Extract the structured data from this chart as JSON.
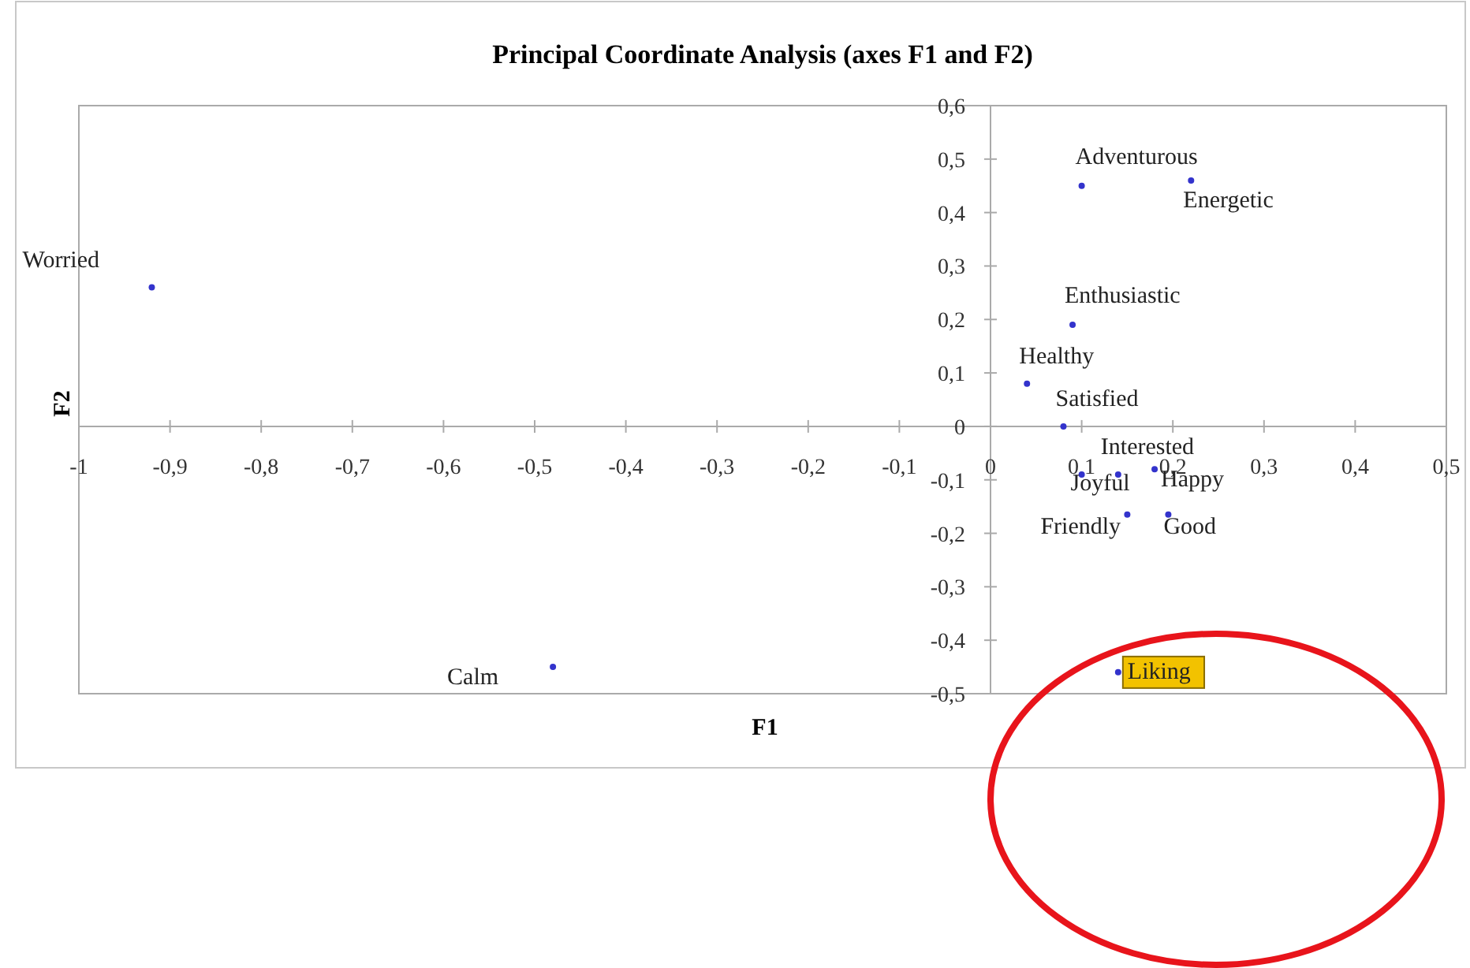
{
  "chart_data": {
    "type": "scatter",
    "title": "Principal Coordinate Analysis (axes F1 and F2)",
    "xlabel": "F1",
    "ylabel": "F2",
    "marker": "circle",
    "grid": false,
    "xlim": [
      -1,
      0.5
    ],
    "ylim": [
      -0.5,
      0.6
    ],
    "xticks": [
      {
        "value": -1,
        "label": "-1"
      },
      {
        "value": -0.9,
        "label": "-0,9"
      },
      {
        "value": -0.8,
        "label": "-0,8"
      },
      {
        "value": -0.7,
        "label": "-0,7"
      },
      {
        "value": -0.6,
        "label": "-0,6"
      },
      {
        "value": -0.5,
        "label": "-0,5"
      },
      {
        "value": -0.4,
        "label": "-0,4"
      },
      {
        "value": -0.3,
        "label": "-0,3"
      },
      {
        "value": -0.2,
        "label": "-0,2"
      },
      {
        "value": -0.1,
        "label": "-0,1"
      },
      0,
      {
        "value": 0.1,
        "label": "0,1"
      },
      {
        "value": 0.2,
        "label": "0,2"
      },
      {
        "value": 0.3,
        "label": "0,3"
      },
      {
        "value": 0.4,
        "label": "0,4"
      },
      {
        "value": 0.5,
        "label": "0,5"
      }
    ],
    "yticks": [
      {
        "value": -0.5,
        "label": "-0,5"
      },
      {
        "value": -0.4,
        "label": "-0,4"
      },
      {
        "value": -0.3,
        "label": "-0,3"
      },
      {
        "value": -0.2,
        "label": "-0,2"
      },
      {
        "value": -0.1,
        "label": "-0,1"
      },
      0,
      {
        "value": 0.1,
        "label": "0,1"
      },
      {
        "value": 0.2,
        "label": "0,2"
      },
      {
        "value": 0.3,
        "label": "0,3"
      },
      {
        "value": 0.4,
        "label": "0,4"
      },
      {
        "value": 0.5,
        "label": "0,5"
      },
      {
        "value": 0.6,
        "label": "0,6"
      }
    ],
    "series": [
      {
        "color": "#3333cc",
        "x": [
          -0.92,
          -0.48,
          0.1,
          0.22,
          0.09,
          0.04,
          0.08,
          0.14,
          0.1,
          0.18,
          0.15,
          0.195,
          0.14
        ],
        "values": [
          0.26,
          -0.45,
          0.45,
          0.46,
          0.19,
          0.08,
          0.0,
          -0.09,
          -0.09,
          -0.08,
          -0.165,
          -0.165,
          -0.46
        ]
      }
    ],
    "annotations": [
      {
        "text": "Worried",
        "x": -0.92,
        "y": 0.26
      },
      {
        "text": "Calm",
        "x": -0.48,
        "y": -0.45
      },
      {
        "text": "Adventurous",
        "x": 0.1,
        "y": 0.45
      },
      {
        "text": "Energetic",
        "x": 0.22,
        "y": 0.46
      },
      {
        "text": "Enthusiastic",
        "x": 0.09,
        "y": 0.19
      },
      {
        "text": "Healthy",
        "x": 0.04,
        "y": 0.08
      },
      {
        "text": "Satisfied",
        "x": 0.08,
        "y": 0.0
      },
      {
        "text": "Interested",
        "x": 0.14,
        "y": -0.09
      },
      {
        "text": "Joyful",
        "x": 0.1,
        "y": -0.09
      },
      {
        "text": "Happy",
        "x": 0.18,
        "y": -0.08
      },
      {
        "text": "Friendly",
        "x": 0.15,
        "y": -0.165
      },
      {
        "text": "Good",
        "x": 0.195,
        "y": -0.165
      },
      {
        "text": "Liking",
        "x": 0.14,
        "y": -0.46
      }
    ]
  }
}
